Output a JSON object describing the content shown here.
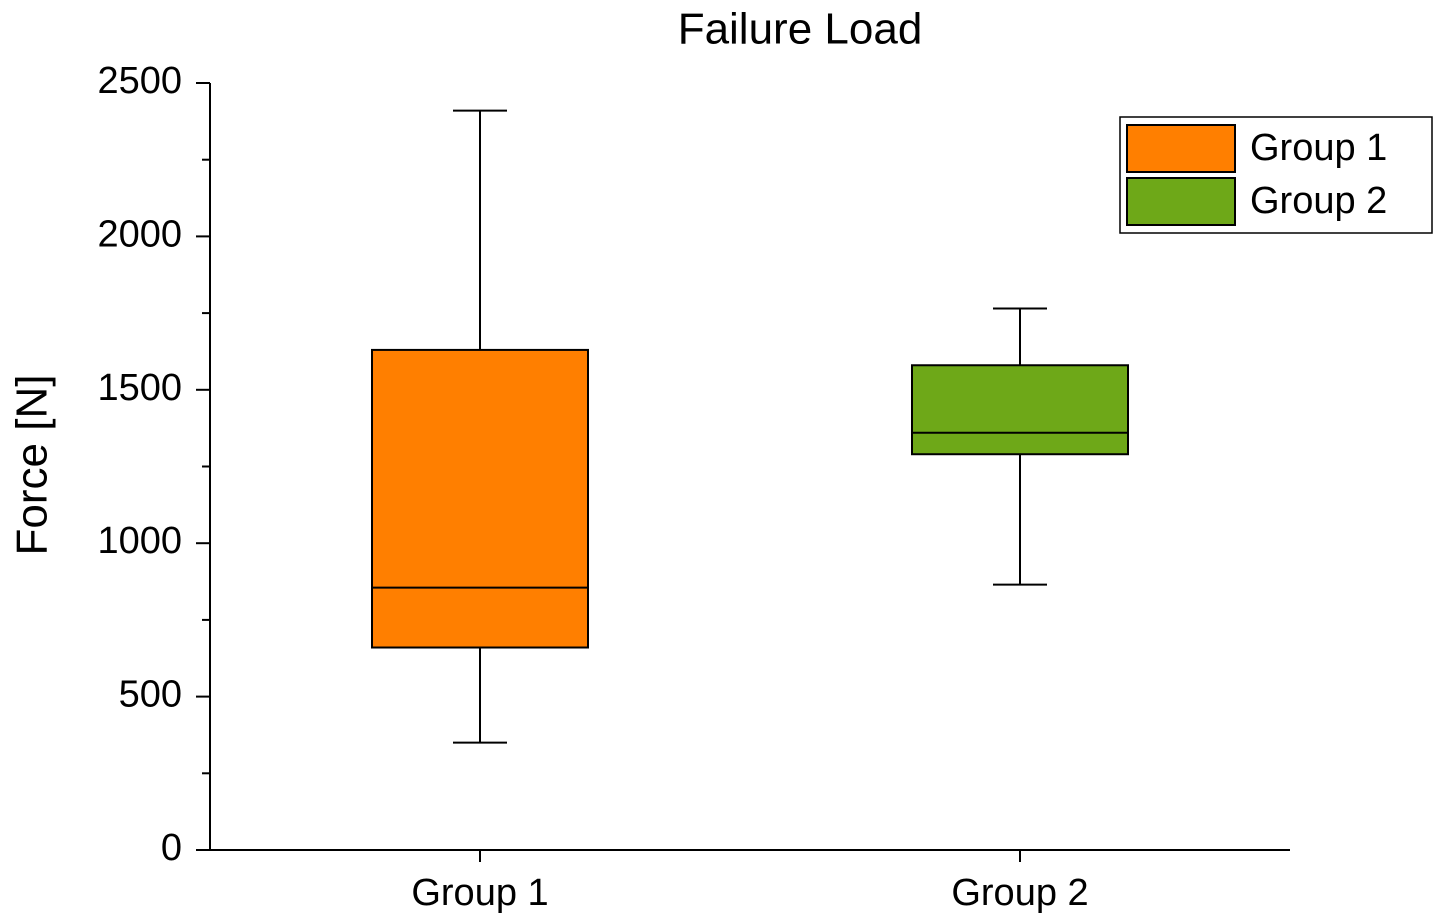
{
  "chart_data": {
    "type": "box",
    "title": "Failure Load",
    "y_label": "Force [N]",
    "categories": [
      "Group 1",
      "Group 2"
    ],
    "series": [
      {
        "name": "Group 1",
        "color": "#ff7f00",
        "min": 350,
        "q1": 660,
        "median": 855,
        "q3": 1630,
        "max": 2410
      },
      {
        "name": "Group 2",
        "color": "#6ea818",
        "min": 865,
        "q1": 1290,
        "median": 1360,
        "q3": 1580,
        "max": 1765
      }
    ],
    "ylim": [
      0,
      2500
    ],
    "yticks": [
      0,
      500,
      1000,
      1500,
      2000,
      2500
    ],
    "yticks_minor": [
      250,
      750,
      1250,
      1750,
      2250
    ],
    "legend": "upper right"
  }
}
